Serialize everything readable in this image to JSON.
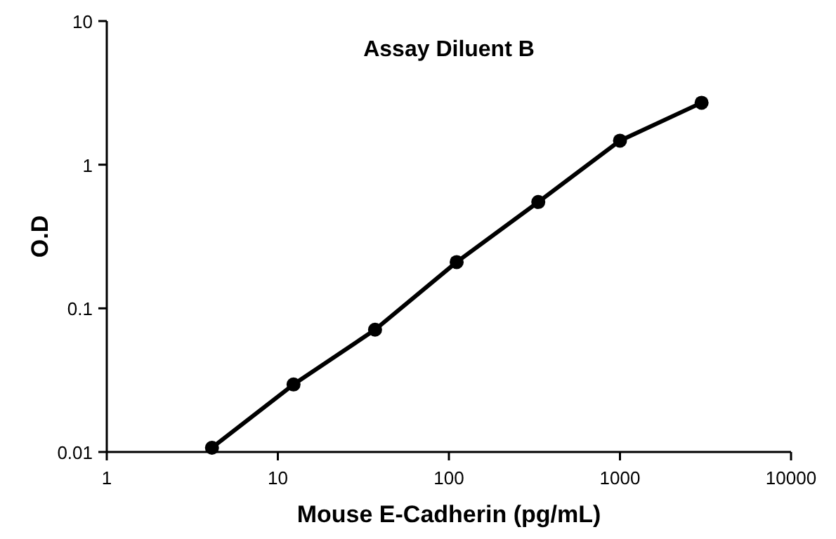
{
  "chart_data": {
    "type": "line",
    "title": "Assay Diluent B",
    "xlabel": "Mouse E-Cadherin (pg/mL)",
    "ylabel": "O.D",
    "log": "xy",
    "xlim": [
      1,
      10000
    ],
    "ylim": [
      0.01,
      10
    ],
    "xticks": [
      1,
      10,
      100,
      1000,
      10000
    ],
    "yticks": [
      0.01,
      0.1,
      1,
      10
    ],
    "marker": "circle",
    "line_style": "solid",
    "grid": false,
    "series": [
      {
        "color": "#000000",
        "x": [
          4.12,
          12.35,
          37,
          111,
          333,
          1000,
          3000
        ],
        "values": [
          0.0107,
          0.0295,
          0.071,
          0.21,
          0.55,
          1.47,
          2.7
        ]
      }
    ]
  }
}
